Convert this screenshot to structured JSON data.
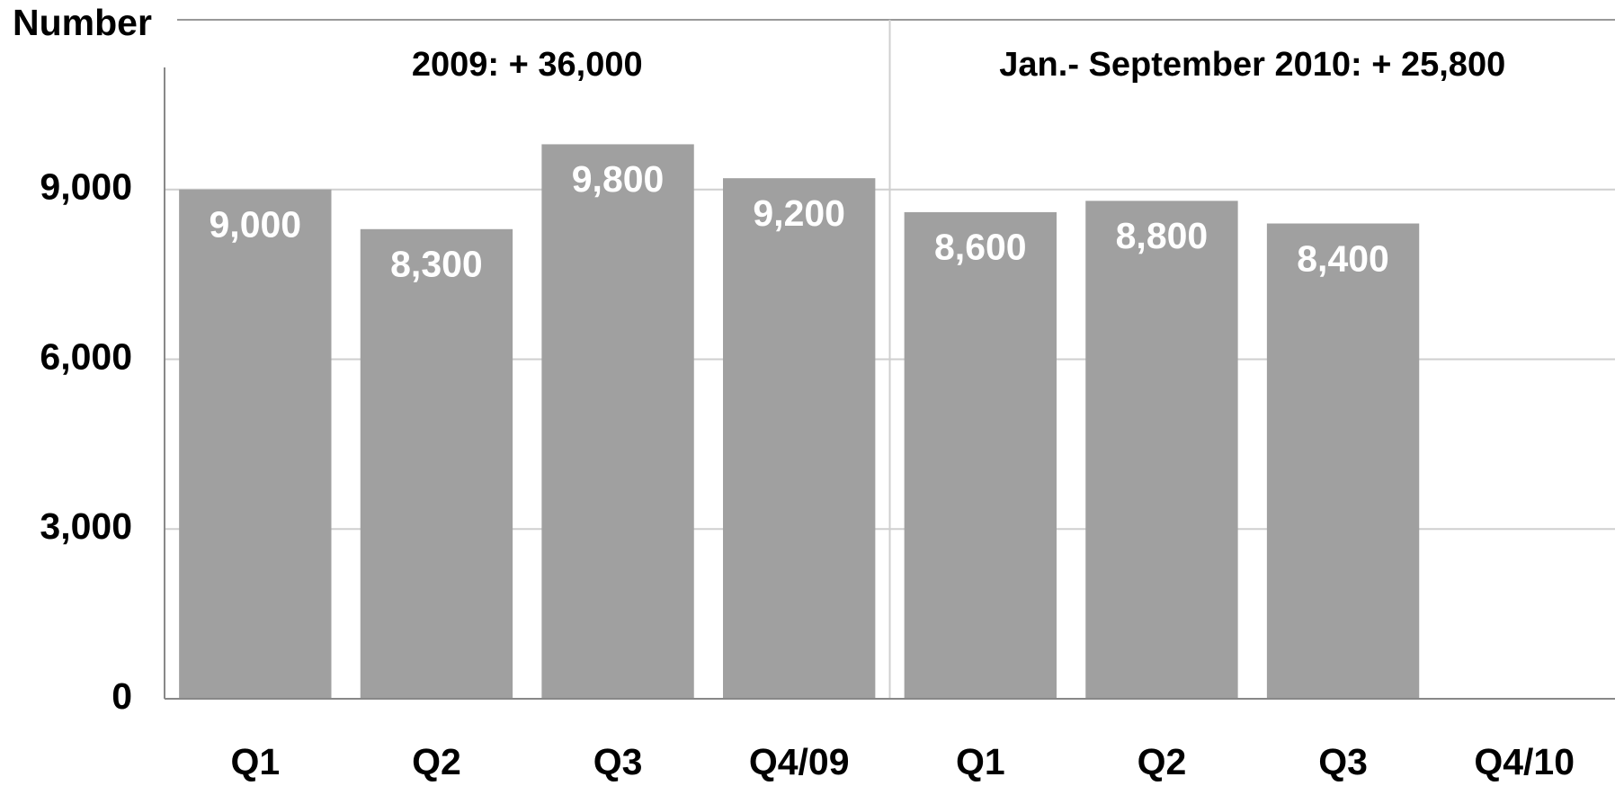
{
  "chart_data": {
    "type": "bar",
    "y_label": "Number",
    "annotations": [
      "2009: + 36,000",
      "Jan.- September 2010: + 25,800"
    ],
    "categories": [
      "Q1",
      "Q2",
      "Q3",
      "Q4/09",
      "Q1",
      "Q2",
      "Q3",
      "Q4/10"
    ],
    "values": [
      9000,
      8300,
      9800,
      9200,
      8600,
      8800,
      8400,
      null
    ],
    "value_labels": [
      "9,000",
      "8,300",
      "9,800",
      "9,200",
      "8,600",
      "8,800",
      "8,400",
      null
    ],
    "color": "#a0a0a0",
    "ylim": [
      0,
      12000
    ],
    "yticks": [
      0,
      {
        "value": 3000,
        "label": "3,000"
      },
      {
        "value": 6000,
        "label": "6,000"
      },
      {
        "value": 9000,
        "label": "9,000"
      }
    ],
    "grid": true
  }
}
